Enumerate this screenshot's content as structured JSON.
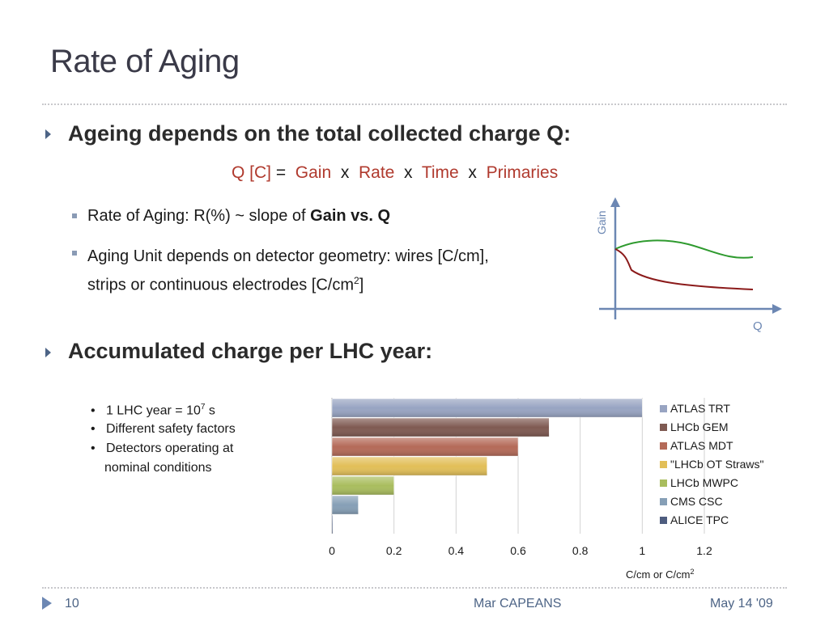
{
  "slide": {
    "title": "Rate of Aging",
    "bullet1": "Ageing depends on the total collected charge Q:",
    "formula": {
      "q": "Q [C]",
      "eq": "=",
      "gain": "Gain",
      "x1": "x",
      "rate": "Rate",
      "x2": "x",
      "time": "Time",
      "x3": "x",
      "primaries": "Primaries"
    },
    "sub1_pre": "Rate of Aging:  R(%) ~ slope of ",
    "sub1_bold": "Gain vs. Q",
    "sub2_line1": "Aging Unit depends on detector geometry: wires [C/cm],",
    "sub2_line2_pre": "strips or continuous electrodes [C/cm",
    "sub2_sup": "2",
    "sub2_post": "]",
    "bullet2": "Accumulated charge per LHC year:",
    "dots": {
      "d1_pre": "1 LHC year = 10",
      "d1_sup": "7",
      "d1_post": " s",
      "d2": "Different safety factors",
      "d3_line1": "Detectors operating at",
      "d3_line2": "nominal conditions"
    }
  },
  "sketch": {
    "ylabel": "Gain",
    "xlabel": "Q",
    "colors": {
      "axis": "#6c87b3",
      "upper": "#2e9a2e",
      "lower": "#8b1a1a"
    }
  },
  "chart_data": {
    "type": "bar",
    "orientation": "horizontal",
    "categories": [
      "ATLAS TRT",
      "LHCb GEM",
      "ATLAS MDT",
      "\"LHCb OT Straws\"",
      "LHCb MWPC",
      "CMS CSC",
      "ALICE TPC"
    ],
    "values": [
      1.0,
      0.7,
      0.6,
      0.5,
      0.2,
      0.085,
      0.003
    ],
    "colors": [
      "#98a4c2",
      "#7f5a52",
      "#b46a58",
      "#e2bf58",
      "#a9bd5e",
      "#869fb6",
      "#4e5d7f"
    ],
    "xlim": [
      0,
      1.2
    ],
    "xticks": [
      "0",
      "0.2",
      "0.4",
      "0.6",
      "0.8",
      "1",
      "1.2"
    ],
    "xlabel": "C/cm or C/cm",
    "xlabel_sup": "2",
    "legend_position": "right",
    "grid": true
  },
  "footer": {
    "page": "10",
    "author": "Mar CAPEANS",
    "date": "May 14 '09"
  }
}
